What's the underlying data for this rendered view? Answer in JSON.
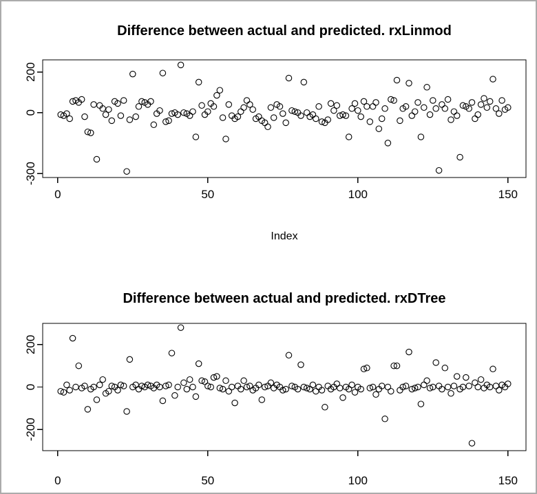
{
  "window": {
    "background_color": "#ffffff",
    "border_color": "#ababab",
    "point_color": "#000000",
    "axis_color": "#000000"
  },
  "chart_data": [
    {
      "type": "scatter",
      "title": "Difference between actual and predicted. rxLinmod",
      "xlabel": "Index",
      "ylabel": "",
      "marker": "open-circle",
      "grid": false,
      "legend": "none",
      "xlim": [
        -5,
        156
      ],
      "ylim": [
        -320,
        260
      ],
      "xticks": [
        0,
        50,
        100,
        150
      ],
      "yticks": [
        200,
        0,
        -300
      ],
      "x": [
        1,
        2,
        3,
        4,
        5,
        6,
        7,
        8,
        9,
        10,
        11,
        12,
        13,
        14,
        15,
        16,
        17,
        18,
        19,
        20,
        21,
        22,
        23,
        24,
        25,
        26,
        27,
        28,
        29,
        30,
        31,
        32,
        33,
        34,
        35,
        36,
        37,
        38,
        39,
        40,
        41,
        42,
        43,
        44,
        45,
        46,
        47,
        48,
        49,
        50,
        51,
        52,
        53,
        54,
        55,
        56,
        57,
        58,
        59,
        60,
        61,
        62,
        63,
        64,
        65,
        66,
        67,
        68,
        69,
        70,
        71,
        72,
        73,
        74,
        75,
        76,
        77,
        78,
        79,
        80,
        81,
        82,
        83,
        84,
        85,
        86,
        87,
        88,
        89,
        90,
        91,
        92,
        93,
        94,
        95,
        96,
        97,
        98,
        99,
        100,
        101,
        102,
        103,
        104,
        105,
        106,
        107,
        108,
        109,
        110,
        111,
        112,
        113,
        114,
        115,
        116,
        117,
        118,
        119,
        120,
        121,
        122,
        123,
        124,
        125,
        126,
        127,
        128,
        129,
        130,
        131,
        132,
        133,
        134,
        135,
        136,
        137,
        138,
        139,
        140,
        141,
        142,
        143,
        144,
        145,
        146,
        147,
        148,
        149,
        150
      ],
      "y": [
        -10,
        -15,
        -5,
        -30,
        55,
        60,
        50,
        65,
        -20,
        -95,
        -100,
        40,
        -230,
        35,
        20,
        -10,
        15,
        -40,
        55,
        45,
        -15,
        60,
        -290,
        -35,
        190,
        -20,
        30,
        55,
        50,
        40,
        55,
        -60,
        -5,
        10,
        195,
        -45,
        -40,
        -5,
        0,
        -10,
        235,
        0,
        -5,
        -15,
        5,
        -120,
        150,
        35,
        -10,
        5,
        45,
        30,
        85,
        110,
        -25,
        -130,
        40,
        -15,
        -30,
        -20,
        5,
        25,
        60,
        40,
        15,
        -30,
        -20,
        -40,
        -50,
        -70,
        25,
        -25,
        40,
        30,
        -5,
        -50,
        170,
        10,
        5,
        0,
        -15,
        150,
        0,
        -20,
        -10,
        -30,
        30,
        -45,
        -50,
        -35,
        45,
        10,
        35,
        -15,
        -10,
        -15,
        -120,
        20,
        45,
        10,
        -20,
        55,
        30,
        -45,
        30,
        50,
        -80,
        -30,
        20,
        -150,
        65,
        60,
        160,
        -40,
        20,
        30,
        145,
        -15,
        5,
        50,
        -120,
        25,
        125,
        -10,
        60,
        20,
        -285,
        40,
        20,
        65,
        -35,
        5,
        -15,
        -220,
        35,
        30,
        20,
        50,
        -30,
        -10,
        40,
        70,
        25,
        55,
        165,
        20,
        -5,
        60,
        15,
        25
      ]
    },
    {
      "type": "scatter",
      "title": "Difference between actual and predicted. rxDTree",
      "xlabel": "",
      "ylabel": "",
      "marker": "open-circle",
      "grid": false,
      "legend": "none",
      "xlim": [
        -5,
        156
      ],
      "ylim": [
        -300,
        300
      ],
      "xticks": [
        0,
        50,
        100,
        150
      ],
      "yticks": [
        200,
        0,
        -200
      ],
      "x": [
        1,
        2,
        3,
        4,
        5,
        6,
        7,
        8,
        9,
        10,
        11,
        12,
        13,
        14,
        15,
        16,
        17,
        18,
        19,
        20,
        21,
        22,
        23,
        24,
        25,
        26,
        27,
        28,
        29,
        30,
        31,
        32,
        33,
        34,
        35,
        36,
        37,
        38,
        39,
        40,
        41,
        42,
        43,
        44,
        45,
        46,
        47,
        48,
        49,
        50,
        51,
        52,
        53,
        54,
        55,
        56,
        57,
        58,
        59,
        60,
        61,
        62,
        63,
        64,
        65,
        66,
        67,
        68,
        69,
        70,
        71,
        72,
        73,
        74,
        75,
        76,
        77,
        78,
        79,
        80,
        81,
        82,
        83,
        84,
        85,
        86,
        87,
        88,
        89,
        90,
        91,
        92,
        93,
        94,
        95,
        96,
        97,
        98,
        99,
        100,
        101,
        102,
        103,
        104,
        105,
        106,
        107,
        108,
        109,
        110,
        111,
        112,
        113,
        114,
        115,
        116,
        117,
        118,
        119,
        120,
        121,
        122,
        123,
        124,
        125,
        126,
        127,
        128,
        129,
        130,
        131,
        132,
        133,
        134,
        135,
        136,
        137,
        138,
        139,
        140,
        141,
        142,
        143,
        144,
        145,
        146,
        147,
        148,
        149,
        150
      ],
      "y": [
        -20,
        -25,
        10,
        -15,
        230,
        0,
        100,
        -5,
        5,
        -105,
        -10,
        0,
        -60,
        10,
        35,
        -30,
        -20,
        5,
        0,
        -15,
        10,
        5,
        -115,
        130,
        0,
        10,
        -10,
        5,
        0,
        10,
        5,
        -5,
        10,
        0,
        -65,
        5,
        10,
        160,
        -40,
        0,
        280,
        20,
        -10,
        35,
        0,
        -45,
        110,
        30,
        25,
        5,
        0,
        45,
        50,
        -5,
        -10,
        30,
        -20,
        0,
        -75,
        5,
        -10,
        30,
        0,
        5,
        -15,
        -5,
        10,
        -60,
        0,
        5,
        20,
        -5,
        10,
        0,
        -15,
        -10,
        150,
        5,
        0,
        -10,
        105,
        0,
        -5,
        -10,
        10,
        -20,
        0,
        -15,
        -95,
        5,
        -10,
        0,
        15,
        -5,
        -50,
        0,
        -10,
        10,
        -25,
        0,
        -10,
        85,
        90,
        -5,
        0,
        -35,
        -10,
        5,
        -150,
        0,
        -20,
        100,
        100,
        -15,
        0,
        5,
        165,
        -10,
        -5,
        0,
        -80,
        10,
        30,
        -5,
        0,
        115,
        5,
        -10,
        90,
        0,
        -30,
        5,
        50,
        -10,
        0,
        45,
        5,
        -265,
        20,
        0,
        35,
        -5,
        10,
        0,
        85,
        5,
        -15,
        10,
        0,
        15
      ]
    }
  ]
}
